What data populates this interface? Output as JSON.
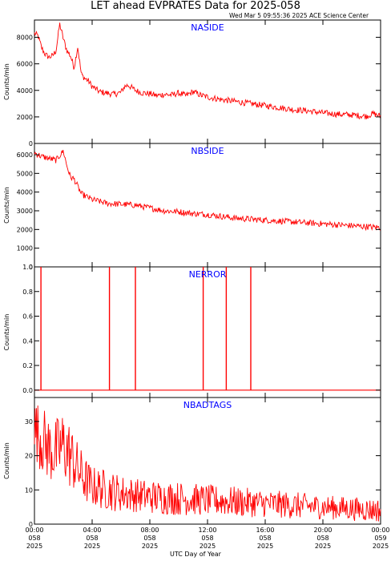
{
  "header": {
    "title": "LET ahead EVPRATES Data for 2025-058",
    "timestamp": "Wed Mar  5 09:55:36 2025 ACE Science Center"
  },
  "xaxis": {
    "label": "UTC Day of Year",
    "range_hours": [
      0,
      24
    ],
    "ticks": [
      {
        "hours": 0,
        "time": "00:00",
        "doy": "058",
        "year": "2025"
      },
      {
        "hours": 4,
        "time": "04:00",
        "doy": "058",
        "year": "2025"
      },
      {
        "hours": 8,
        "time": "08:00",
        "doy": "058",
        "year": "2025"
      },
      {
        "hours": 12,
        "time": "12:00",
        "doy": "058",
        "year": "2025"
      },
      {
        "hours": 16,
        "time": "16:00",
        "doy": "058",
        "year": "2025"
      },
      {
        "hours": 20,
        "time": "20:00",
        "doy": "058",
        "year": "2025"
      },
      {
        "hours": 24,
        "time": "00:00",
        "doy": "059",
        "year": "2025"
      }
    ]
  },
  "colors": {
    "series": "#ff0000",
    "panel_title": "#0000ff",
    "axes": "#000000",
    "background": "#ffffff"
  },
  "chart_data": [
    {
      "type": "line",
      "title": "NASIDE",
      "ylabel": "Counts/min",
      "ylim": [
        0,
        9300
      ],
      "yticks": [
        0,
        2000,
        4000,
        6000,
        8000
      ],
      "grid": false,
      "x": [
        0,
        0.25,
        0.5,
        0.75,
        1.0,
        1.25,
        1.5,
        1.75,
        2.0,
        2.25,
        2.5,
        2.75,
        3.0,
        3.25,
        3.5,
        3.75,
        4.0,
        4.5,
        5.0,
        5.5,
        6.0,
        6.25,
        6.5,
        6.75,
        7.0,
        7.5,
        8.0,
        8.5,
        9.0,
        9.5,
        10.0,
        10.5,
        11.0,
        11.5,
        12.0,
        13.0,
        14.0,
        15.0,
        16.0,
        17.0,
        18.0,
        19.0,
        20.0,
        21.0,
        22.0,
        23.0,
        23.5,
        24.0
      ],
      "values": [
        8300,
        8100,
        7200,
        6700,
        6500,
        6600,
        7000,
        9000,
        7900,
        7000,
        6600,
        5700,
        7300,
        5200,
        4900,
        4700,
        4300,
        3900,
        3800,
        3700,
        3850,
        4300,
        4400,
        4200,
        4000,
        3800,
        3750,
        3600,
        3700,
        3650,
        3800,
        3600,
        3900,
        3650,
        3500,
        3300,
        3150,
        3000,
        2850,
        2700,
        2550,
        2450,
        2300,
        2200,
        2150,
        2050,
        2250,
        2050
      ]
    },
    {
      "type": "line",
      "title": "NBSIDE",
      "ylabel": "Counts/min",
      "ylim": [
        0,
        6600
      ],
      "yticks": [
        0,
        1000,
        2000,
        3000,
        4000,
        5000,
        6000
      ],
      "grid": false,
      "x": [
        0,
        0.5,
        1.0,
        1.5,
        2.0,
        2.25,
        2.5,
        2.75,
        3.0,
        3.25,
        3.5,
        4.0,
        5.0,
        6.0,
        7.0,
        8.0,
        9.0,
        10.0,
        11.0,
        12.0,
        13.0,
        14.0,
        15.0,
        16.0,
        17.0,
        18.0,
        19.0,
        20.0,
        21.0,
        22.0,
        23.0,
        24.0
      ],
      "values": [
        6100,
        5900,
        5800,
        5700,
        6200,
        5400,
        4800,
        4700,
        4300,
        3900,
        3800,
        3600,
        3400,
        3350,
        3300,
        3150,
        3000,
        2950,
        2850,
        2800,
        2700,
        2600,
        2550,
        2500,
        2450,
        2400,
        2350,
        2300,
        2250,
        2200,
        2150,
        2100
      ]
    },
    {
      "type": "line",
      "title": "NERROR",
      "ylabel": "Counts/min",
      "ylim": [
        -0.06,
        1.0
      ],
      "yticks": [
        0.0,
        0.2,
        0.4,
        0.6,
        0.8,
        1.0
      ],
      "grid": false,
      "baseline": 0,
      "spikes_x_hours": [
        0.45,
        5.2,
        7.0,
        11.7,
        13.3,
        15.0
      ],
      "spike_value": 1
    },
    {
      "type": "line",
      "title": "NBADTAGS",
      "ylabel": "Counts/min",
      "ylim": [
        0,
        37
      ],
      "yticks": [
        0,
        10,
        20,
        30
      ],
      "grid": false,
      "x": [
        0,
        0.5,
        1.0,
        1.5,
        2.0,
        2.5,
        3.0,
        3.5,
        4.0,
        5.0,
        6.0,
        7.0,
        8.0,
        10.0,
        12.0,
        14.0,
        16.0,
        18.0,
        20.0,
        22.0,
        24.0
      ],
      "values": [
        28,
        25,
        22,
        21,
        23,
        20,
        16,
        13,
        11,
        10,
        9,
        8.5,
        8,
        7.5,
        7,
        6.5,
        6,
        5.5,
        5,
        4.5,
        4
      ],
      "noise_amplitude": [
        9,
        10,
        10,
        10,
        11,
        10,
        8,
        7,
        6,
        6,
        5.5,
        5,
        5,
        5,
        4.5,
        4.5,
        4,
        4,
        3.5,
        3.5,
        3.5
      ]
    }
  ]
}
